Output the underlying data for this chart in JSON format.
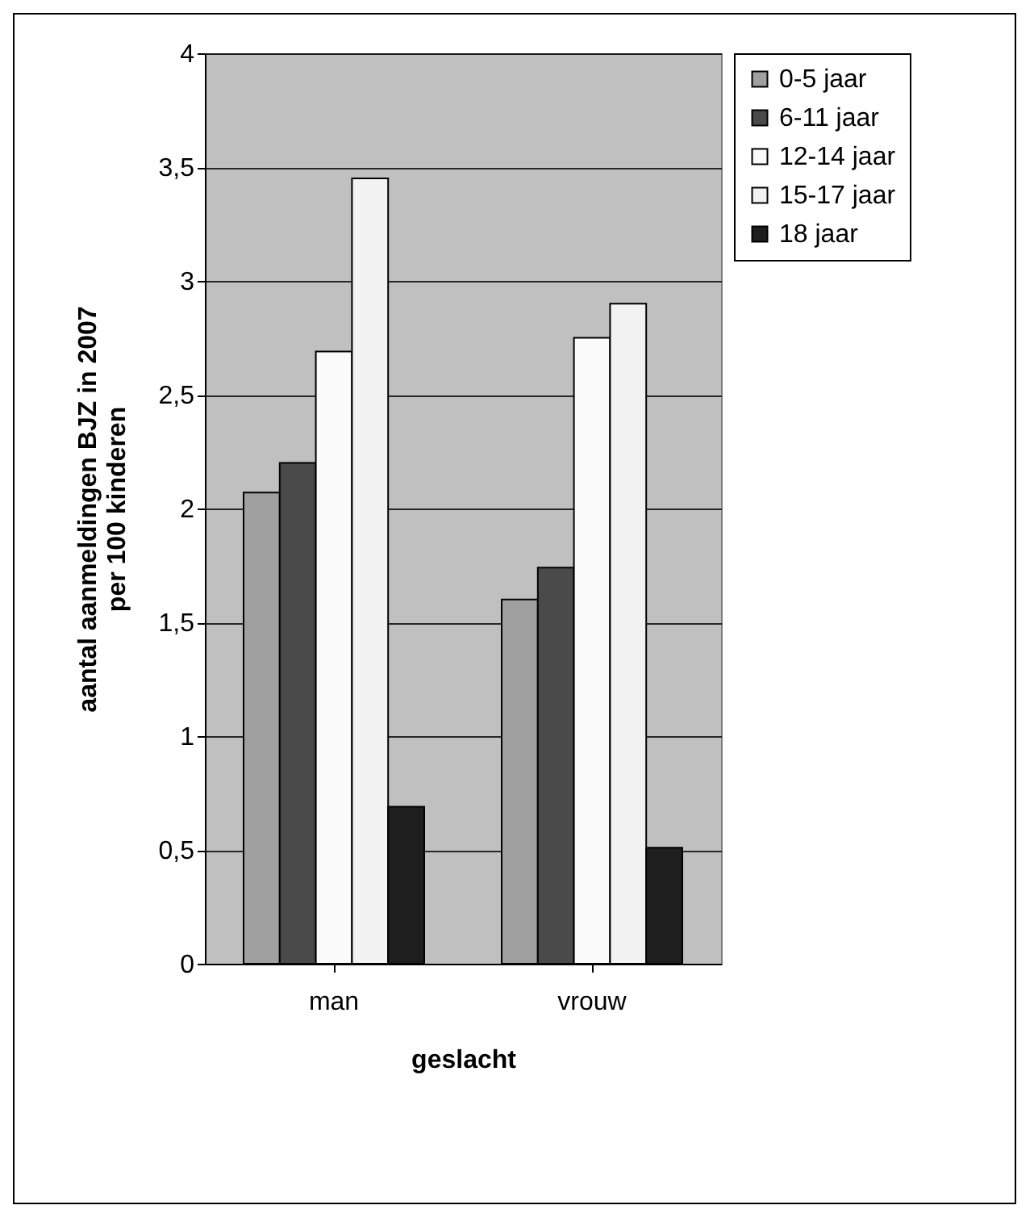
{
  "chart_data": {
    "type": "bar",
    "xlabel": "geslacht",
    "ylabel": "aantal aanmeldingen BJZ in 2007\nper 100 kinderen",
    "categories": [
      "man",
      "vrouw"
    ],
    "series": [
      {
        "name": "0-5 jaar",
        "color": "#a0a0a0",
        "values": [
          2.07,
          1.6
        ]
      },
      {
        "name": "6-11 jaar",
        "color": "#4a4a4a",
        "values": [
          2.2,
          1.74
        ]
      },
      {
        "name": "12-14 jaar",
        "color": "#fafafa",
        "values": [
          2.69,
          2.75
        ]
      },
      {
        "name": "15-17 jaar",
        "color": "#f2f2f2",
        "values": [
          3.45,
          2.9
        ]
      },
      {
        "name": "18 jaar",
        "color": "#1e1e1e",
        "values": [
          0.69,
          0.51
        ]
      }
    ],
    "ylim": [
      0,
      4
    ],
    "yticks": [
      0,
      {
        "value": 0.5,
        "label": "0,5"
      },
      1,
      {
        "value": 1.5,
        "label": "1,5"
      },
      2,
      {
        "value": 2.5,
        "label": "2,5"
      },
      3,
      {
        "value": 3.5,
        "label": "3,5"
      },
      4
    ],
    "grid": "y",
    "legend": "right"
  }
}
